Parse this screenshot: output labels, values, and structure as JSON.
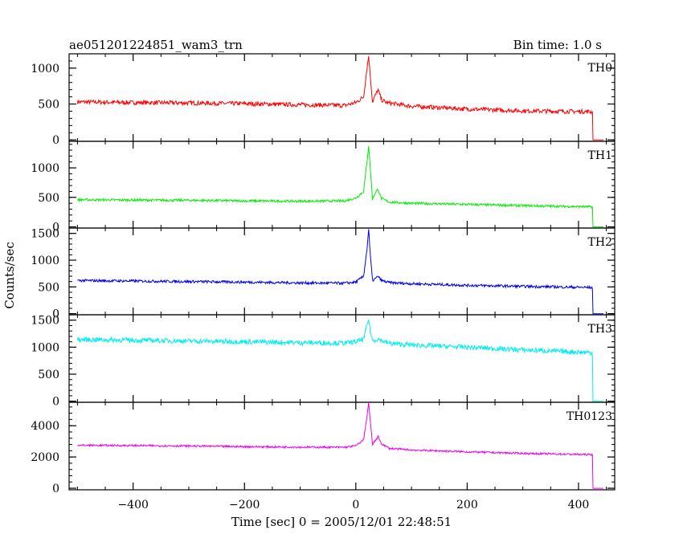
{
  "header": {
    "title": "ae051201224851_wam3_trn",
    "bin_time": "Bin time: 1.0 s"
  },
  "chart_data": {
    "type": "line",
    "xlabel": "Time [sec] 0 = 2005/12/01 22:48:51",
    "ylabel": "Counts/sec",
    "xlim": [
      -515,
      465
    ],
    "x_ticks": [
      -400,
      -200,
      0,
      200,
      400
    ],
    "x_tick_labels": [
      "−400",
      "−200",
      "0",
      "200",
      "400"
    ],
    "grid": false,
    "panels": [
      {
        "name": "TH0",
        "color": "#ff0000",
        "ylim": [
          -20,
          1200
        ],
        "y_ticks": [
          0,
          500,
          1000
        ],
        "y_tick_labels": [
          "0",
          "500",
          "1000"
        ],
        "points": [
          [
            -500,
            530
          ],
          [
            -400,
            520
          ],
          [
            -300,
            515
          ],
          [
            -200,
            505
          ],
          [
            -100,
            490
          ],
          [
            -20,
            480
          ],
          [
            0,
            520
          ],
          [
            14,
            600
          ],
          [
            20,
            1000
          ],
          [
            23,
            1170
          ],
          [
            26,
            900
          ],
          [
            30,
            530
          ],
          [
            35,
            620
          ],
          [
            40,
            700
          ],
          [
            46,
            560
          ],
          [
            55,
            520
          ],
          [
            80,
            490
          ],
          [
            100,
            470
          ],
          [
            200,
            430
          ],
          [
            300,
            405
          ],
          [
            350,
            400
          ],
          [
            420,
            395
          ],
          [
            425,
            390
          ],
          [
            426,
            0
          ],
          [
            445,
            0
          ]
        ],
        "noise": 30
      },
      {
        "name": "TH1",
        "color": "#00ee00",
        "ylim": [
          -20,
          1450
        ],
        "y_ticks": [
          0,
          500,
          1000
        ],
        "y_tick_labels": [
          "0",
          "500",
          "1000"
        ],
        "points": [
          [
            -500,
            460
          ],
          [
            -400,
            455
          ],
          [
            -300,
            450
          ],
          [
            -200,
            440
          ],
          [
            -100,
            435
          ],
          [
            -20,
            440
          ],
          [
            0,
            490
          ],
          [
            14,
            600
          ],
          [
            20,
            1100
          ],
          [
            23,
            1380
          ],
          [
            26,
            1000
          ],
          [
            30,
            470
          ],
          [
            35,
            580
          ],
          [
            40,
            640
          ],
          [
            46,
            480
          ],
          [
            60,
            420
          ],
          [
            100,
            400
          ],
          [
            200,
            380
          ],
          [
            300,
            360
          ],
          [
            420,
            340
          ],
          [
            425,
            335
          ],
          [
            426,
            0
          ],
          [
            445,
            0
          ]
        ],
        "noise": 20
      },
      {
        "name": "TH2",
        "color": "#0000ee",
        "ylim": [
          -20,
          1600
        ],
        "y_ticks": [
          0,
          500,
          1000,
          1500
        ],
        "y_tick_labels": [
          "0",
          "500",
          "1000",
          "1500"
        ],
        "points": [
          [
            -500,
            620
          ],
          [
            -400,
            610
          ],
          [
            -300,
            600
          ],
          [
            -200,
            590
          ],
          [
            -100,
            575
          ],
          [
            -20,
            570
          ],
          [
            0,
            590
          ],
          [
            14,
            700
          ],
          [
            20,
            1200
          ],
          [
            23,
            1580
          ],
          [
            26,
            1100
          ],
          [
            30,
            620
          ],
          [
            36,
            660
          ],
          [
            40,
            700
          ],
          [
            46,
            620
          ],
          [
            60,
            580
          ],
          [
            100,
            560
          ],
          [
            200,
            530
          ],
          [
            300,
            510
          ],
          [
            420,
            490
          ],
          [
            425,
            485
          ],
          [
            426,
            0
          ],
          [
            445,
            0
          ]
        ],
        "noise": 25
      },
      {
        "name": "TH3",
        "color": "#00eeee",
        "ylim": [
          -20,
          1600
        ],
        "y_ticks": [
          0,
          500,
          1000,
          1500
        ],
        "y_tick_labels": [
          "0",
          "500",
          "1000",
          "1500"
        ],
        "points": [
          [
            -500,
            1140
          ],
          [
            -400,
            1130
          ],
          [
            -300,
            1115
          ],
          [
            -200,
            1100
          ],
          [
            -100,
            1085
          ],
          [
            -20,
            1075
          ],
          [
            0,
            1100
          ],
          [
            14,
            1150
          ],
          [
            20,
            1400
          ],
          [
            23,
            1520
          ],
          [
            26,
            1300
          ],
          [
            30,
            1120
          ],
          [
            40,
            1150
          ],
          [
            60,
            1070
          ],
          [
            100,
            1040
          ],
          [
            200,
            1000
          ],
          [
            300,
            950
          ],
          [
            420,
            900
          ],
          [
            425,
            890
          ],
          [
            426,
            0
          ],
          [
            445,
            0
          ]
        ],
        "noise": 45
      },
      {
        "name": "TH0123",
        "color": "#ee00ee",
        "ylim": [
          -100,
          5500
        ],
        "y_ticks": [
          0,
          2000,
          4000
        ],
        "y_tick_labels": [
          "0",
          "2000",
          "4000"
        ],
        "points": [
          [
            -500,
            2750
          ],
          [
            -400,
            2730
          ],
          [
            -300,
            2700
          ],
          [
            -200,
            2660
          ],
          [
            -100,
            2630
          ],
          [
            -20,
            2620
          ],
          [
            0,
            2720
          ],
          [
            14,
            3100
          ],
          [
            20,
            4600
          ],
          [
            23,
            5500
          ],
          [
            26,
            4300
          ],
          [
            30,
            2800
          ],
          [
            36,
            3100
          ],
          [
            40,
            3300
          ],
          [
            46,
            2850
          ],
          [
            60,
            2550
          ],
          [
            100,
            2450
          ],
          [
            200,
            2330
          ],
          [
            300,
            2230
          ],
          [
            420,
            2150
          ],
          [
            425,
            2140
          ],
          [
            426,
            0
          ],
          [
            445,
            0
          ]
        ],
        "noise": 60
      }
    ]
  }
}
